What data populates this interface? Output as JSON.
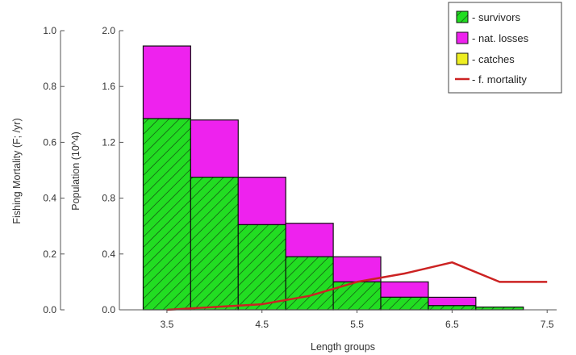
{
  "chart_data": {
    "type": "bar",
    "xlabel": "Length groups",
    "ylabel_left": "Fishing Mortality (F; /yr)",
    "ylabel_right": "Population (10^4)",
    "x_ticks": [
      "3.5",
      "4.5",
      "5.5",
      "6.5",
      "7.5"
    ],
    "x_tick_values": [
      3.5,
      4.5,
      5.5,
      6.5,
      7.5
    ],
    "xlim": [
      3.0,
      7.6
    ],
    "f_axis": {
      "ylim": [
        0,
        1.0
      ],
      "ticks": [
        "0.0",
        "0.2",
        "0.4",
        "0.6",
        "0.8",
        "1.0"
      ],
      "tick_values": [
        0,
        0.2,
        0.4,
        0.6,
        0.8,
        1.0
      ]
    },
    "pop_axis": {
      "ylim": [
        0,
        2.0
      ],
      "ticks": [
        "0.0",
        "0.4",
        "0.8",
        "1.2",
        "1.6",
        "2.0"
      ],
      "tick_values": [
        0,
        0.4,
        0.8,
        1.2,
        1.6,
        2.0
      ]
    },
    "bin_width": 0.5,
    "bin_starts": [
      3.25,
      3.75,
      4.25,
      4.75,
      5.25,
      5.75,
      6.25,
      6.75
    ],
    "series": [
      {
        "name": "- survivors",
        "color": "#22dd22",
        "values": [
          1.37,
          0.95,
          0.61,
          0.38,
          0.2,
          0.09,
          0.03,
          0.02
        ]
      },
      {
        "name": "- nat. losses",
        "color": "#ee22ee",
        "values": [
          0.52,
          0.41,
          0.34,
          0.24,
          0.18,
          0.11,
          0.06,
          0.0
        ]
      },
      {
        "name": "- catches",
        "color": "#eeee22",
        "values": [
          0,
          0,
          0,
          0,
          0,
          0,
          0,
          0
        ]
      }
    ],
    "mortality_line": {
      "name": "- f. mortality",
      "color": "#cc2222",
      "x": [
        3.5,
        4.0,
        4.5,
        5.0,
        5.5,
        6.0,
        6.5,
        7.0,
        7.5
      ],
      "y": [
        0.0,
        0.01,
        0.02,
        0.05,
        0.1,
        0.13,
        0.17,
        0.1,
        0.1
      ]
    },
    "legend_position": "top-right"
  }
}
